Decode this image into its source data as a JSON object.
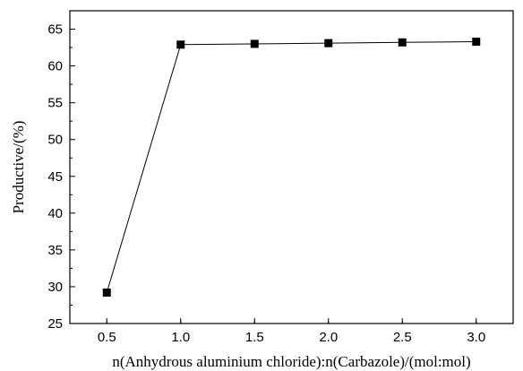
{
  "chart_data": {
    "type": "line",
    "xlabel": "n(Anhydrous aluminium chloride):n(Carbazole)/(mol:mol)",
    "ylabel": "Productive/(%)",
    "xlim": [
      0.25,
      3.25
    ],
    "ylim": [
      25,
      67.5
    ],
    "xticks": [
      0.5,
      1.0,
      1.5,
      2.0,
      2.5,
      3.0
    ],
    "xtick_labels": [
      "0.5",
      "1.0",
      "1.5",
      "2.0",
      "2.5",
      "3.0"
    ],
    "yticks": [
      25,
      30,
      35,
      40,
      45,
      50,
      55,
      60,
      65
    ],
    "ytick_labels": [
      "25",
      "30",
      "35",
      "40",
      "45",
      "50",
      "55",
      "60",
      "65"
    ],
    "grid": false,
    "marker": "square",
    "series": [
      {
        "x": [
          0.5,
          1.0,
          1.5,
          2.0,
          2.5,
          3.0
        ],
        "y": [
          29.2,
          62.9,
          63.0,
          63.1,
          63.2,
          63.3
        ]
      }
    ]
  }
}
